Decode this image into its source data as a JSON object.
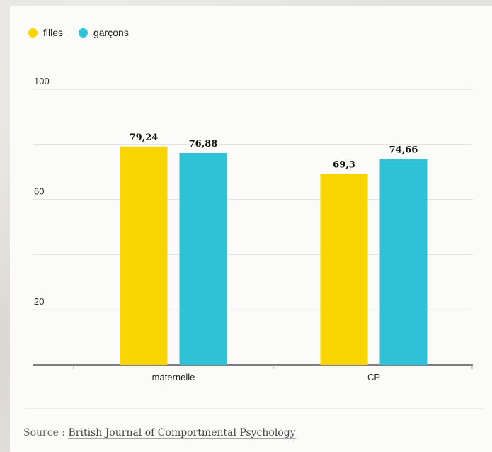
{
  "chart_data": {
    "type": "bar",
    "categories": [
      "maternelle",
      "CP"
    ],
    "series": [
      {
        "name": "filles",
        "values": [
          79.24,
          69.3
        ],
        "labels": [
          "79,24",
          "69,3"
        ]
      },
      {
        "name": "garçons",
        "values": [
          76.88,
          74.66
        ],
        "labels": [
          "76,88",
          "74,66"
        ]
      }
    ],
    "ylim": [
      0,
      100
    ],
    "yticks": [
      0,
      20,
      40,
      60,
      80,
      100
    ],
    "ytick_labels": [
      "20",
      "60",
      "100"
    ],
    "grid": true,
    "legend_placement": "top-left",
    "colors": {
      "filles": "#f9d500",
      "garçons": "#2ec2d7"
    }
  },
  "legend": {
    "filles": "filles",
    "garcons": "garçons"
  },
  "source": {
    "prefix": "Source : ",
    "link": "British Journal of Comportmental Psychology"
  }
}
